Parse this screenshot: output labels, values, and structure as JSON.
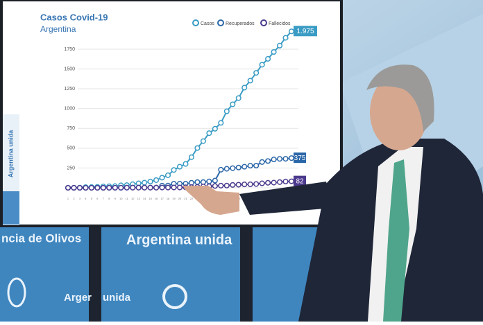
{
  "chart_data": {
    "type": "line",
    "title": "Casos Covid-19",
    "subtitle": "Argentina",
    "x": [
      1,
      2,
      3,
      4,
      5,
      6,
      7,
      8,
      9,
      10,
      11,
      12,
      13,
      14,
      15,
      16,
      17,
      18,
      19,
      20,
      21,
      22,
      23,
      24,
      25,
      26,
      27,
      28,
      29,
      30,
      31,
      32,
      33,
      34,
      35,
      36,
      37,
      38,
      39
    ],
    "xlim": [
      1,
      39
    ],
    "ylim": [
      0,
      1750
    ],
    "yticks": [
      0,
      250,
      500,
      750,
      1000,
      1250,
      1500,
      1750
    ],
    "grid": true,
    "legend": "top-right",
    "series": [
      {
        "name": "Casos",
        "color": "#3a9cc4",
        "values": [
          1,
          1,
          2,
          8,
          9,
          12,
          17,
          19,
          21,
          31,
          34,
          45,
          56,
          65,
          79,
          97,
          128,
          158,
          225,
          266,
          301,
          387,
          502,
          589,
          690,
          745,
          820,
          966,
          1054,
          1133,
          1265,
          1353,
          1451,
          1554,
          1628,
          1715,
          1795,
          1894,
          1975
        ],
        "value_labels": [
          null,
          null,
          null,
          null,
          null,
          null,
          null,
          null,
          null,
          null,
          null,
          null,
          null,
          null,
          null,
          null,
          null,
          null,
          null,
          null,
          null,
          null,
          null,
          null,
          null,
          null,
          null,
          null,
          null,
          null,
          null,
          null,
          null,
          null,
          null,
          null,
          null,
          null,
          "1.975"
        ]
      },
      {
        "name": "Recuperados",
        "color": "#2b66a8",
        "values": [
          0,
          0,
          0,
          0,
          0,
          0,
          0,
          0,
          0,
          0,
          2,
          3,
          3,
          3,
          3,
          3,
          27,
          28,
          51,
          52,
          52,
          63,
          72,
          72,
          80,
          91,
          228,
          240,
          248,
          256,
          266,
          279,
          280,
          325,
          338,
          358,
          365,
          366,
          375
        ]
      },
      {
        "name": "Fallecidos",
        "color": "#4b3a8e",
        "values": [
          0,
          0,
          0,
          0,
          0,
          0,
          0,
          1,
          1,
          1,
          2,
          2,
          2,
          2,
          2,
          2,
          3,
          3,
          4,
          4,
          6,
          8,
          12,
          17,
          19,
          23,
          27,
          28,
          36,
          39,
          43,
          44,
          48,
          56,
          63,
          65,
          72,
          79,
          82
        ]
      }
    ]
  },
  "scene": {
    "screen_side": "Argentina unida",
    "wall_left": "ncia de Olivos",
    "wall_center": "Argentina unida",
    "wall_lower_a": "Arger",
    "wall_lower_b": "unida"
  }
}
